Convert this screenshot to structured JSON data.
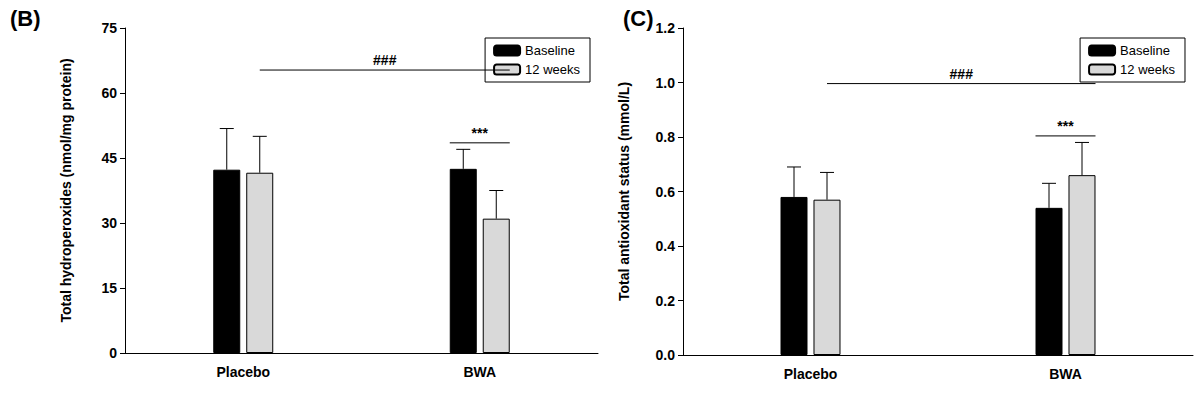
{
  "chart_data": [
    {
      "type": "bar",
      "title": "(B)",
      "y_label": "Total hydroperoxides (nmol/mg protein)",
      "categories": [
        "Placebo",
        "BWA"
      ],
      "series": [
        {
          "name": "Baseline",
          "color": "#000000",
          "values": [
            42.3,
            42.5
          ],
          "errors": [
            9.5,
            4.5
          ]
        },
        {
          "name": "12 weeks",
          "color": "#d9d9d9",
          "values": [
            41.6,
            31.0
          ],
          "errors": [
            8.4,
            6.5
          ]
        }
      ],
      "ylim": [
        0,
        75
      ],
      "yticks": [
        0,
        15,
        30,
        45,
        60,
        75
      ],
      "grid": false,
      "legend": "upper right",
      "annotations": [
        {
          "text": "###",
          "between": [
            "Placebo",
            "BWA"
          ]
        },
        {
          "text": "***",
          "category": "BWA",
          "between": [
            "Baseline",
            "12 weeks"
          ]
        }
      ]
    },
    {
      "type": "bar",
      "title": "(C)",
      "y_label": "Total antioxidant status (mmol/L)",
      "categories": [
        "Placebo",
        "BWA"
      ],
      "series": [
        {
          "name": "Baseline",
          "color": "#000000",
          "values": [
            0.58,
            0.54
          ],
          "errors": [
            0.11,
            0.09
          ]
        },
        {
          "name": "12 weeks",
          "color": "#d9d9d9",
          "values": [
            0.57,
            0.66
          ],
          "errors": [
            0.1,
            0.12
          ]
        }
      ],
      "ylim": [
        0,
        1.2
      ],
      "yticks": [
        {
          "value": 0,
          "label": "0.0"
        },
        0.2,
        0.4,
        0.6,
        0.8,
        {
          "value": 1,
          "label": "1.0"
        },
        1.2
      ],
      "grid": false,
      "legend": "upper right",
      "annotations": [
        {
          "text": "###",
          "between": [
            "Placebo",
            "BWA"
          ]
        },
        {
          "text": "***",
          "category": "BWA",
          "between": [
            "Baseline",
            "12 weeks"
          ]
        }
      ]
    }
  ]
}
